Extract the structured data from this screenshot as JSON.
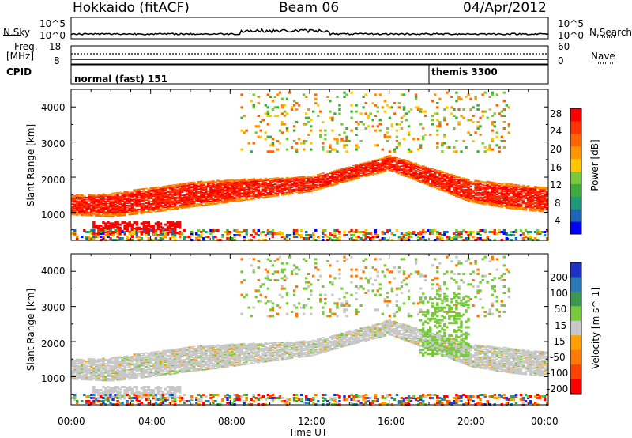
{
  "header": {
    "station": "Hokkaido (fitACF)",
    "beam": "Beam 06",
    "date": "04/Apr/2012"
  },
  "noise_panel": {
    "left_label": "N.Sky",
    "right_label": "N.Search",
    "left_ticks": [
      "10^5",
      "10^0"
    ],
    "right_ticks": [
      "10^5",
      "10^0"
    ]
  },
  "freq_panel": {
    "left_label_1": "Freq.",
    "left_label_2": "[MHz]",
    "left_ticks": [
      "18",
      "8"
    ],
    "right_ticks": [
      "60",
      "0"
    ],
    "right_label": "Nave"
  },
  "cpid_panel": {
    "label": "CPID",
    "segments": [
      {
        "name": "normal (fast) 151",
        "start_hour": 0
      },
      {
        "name": "themis 3300",
        "start_hour": 18
      }
    ]
  },
  "time_axis": {
    "ticks": [
      "00:00",
      "04:00",
      "08:00",
      "12:00",
      "16:00",
      "20:00",
      "00:00"
    ],
    "label": "Time UT"
  },
  "chart_data": [
    {
      "type": "heatmap",
      "name": "power",
      "ylabel": "Slant Range [km]",
      "ylim": [
        200,
        4500
      ],
      "yticks": [
        "1000",
        "2000",
        "3000",
        "4000"
      ],
      "xlim_hours": [
        0,
        24
      ],
      "colorbar": {
        "label": "Power [dB]",
        "ticks": [
          "4",
          "8",
          "12",
          "16",
          "20",
          "24",
          "28"
        ],
        "colors": [
          "#0000ff",
          "#1e64b4",
          "#1e9678",
          "#3caa3c",
          "#78c83c",
          "#ffc800",
          "#ff9600",
          "#ff6400",
          "#ff3200",
          "#ff0000"
        ]
      },
      "main_band": [
        {
          "hour": 0,
          "range": 1200
        },
        {
          "hour": 2,
          "range": 1200
        },
        {
          "hour": 4,
          "range": 1350
        },
        {
          "hour": 6,
          "range": 1500
        },
        {
          "hour": 8,
          "range": 1600
        },
        {
          "hour": 10,
          "range": 1700
        },
        {
          "hour": 12,
          "range": 1800
        },
        {
          "hour": 14,
          "range": 2100
        },
        {
          "hour": 16,
          "range": 2400
        },
        {
          "hour": 18,
          "range": 2000
        },
        {
          "hour": 20,
          "range": 1600
        },
        {
          "hour": 22,
          "range": 1450
        },
        {
          "hour": 24,
          "range": 1350
        }
      ]
    },
    {
      "type": "heatmap",
      "name": "velocity",
      "ylabel": "Slant Range [km]",
      "ylim": [
        200,
        4500
      ],
      "yticks": [
        "1000",
        "2000",
        "3000",
        "4000"
      ],
      "xlim_hours": [
        0,
        24
      ],
      "colorbar": {
        "label": "Velocity [m s^-1]",
        "ticks": [
          "200",
          "100",
          "50",
          "15",
          "-15",
          "-50",
          "-100",
          "-200"
        ],
        "colors": [
          "#1e32c8",
          "#2878b4",
          "#3c9650",
          "#78c83c",
          "#c8c8c8",
          "#ffa000",
          "#ff7800",
          "#ff4000",
          "#ff0000"
        ]
      }
    }
  ]
}
